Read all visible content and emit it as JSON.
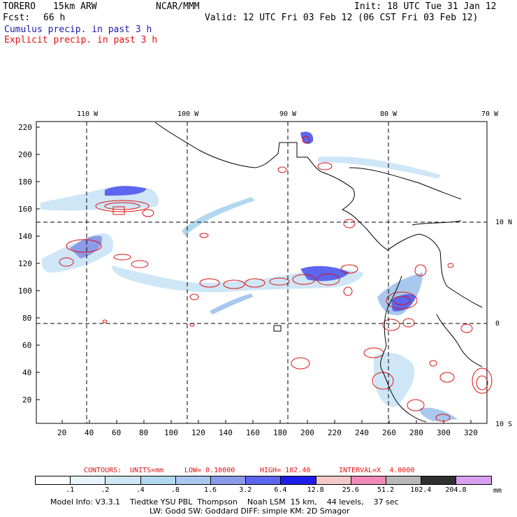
{
  "header": {
    "model": "TORERO",
    "resolution": "15km ARW",
    "center": "NCAR/MMM",
    "init": "Init: 18 UTC Tue 31 Jan 12",
    "fcst_label": "Fcst:",
    "fcst_value": "66 h",
    "valid": "Valid: 12 UTC Fri 03 Feb 12 (06 CST Fri 03 Feb 12)",
    "line_cumulus": "Cumulus precip. in past 3 h",
    "line_explicit": "Explicit precip. in past 3 h"
  },
  "map": {
    "top_lon_labels": [
      "110 W",
      "100 W",
      "90 W",
      "80 W",
      "70 W"
    ],
    "right_lat_labels": [
      "10 N",
      "0",
      "10 S"
    ],
    "y_ticks": [
      "220",
      "200",
      "180",
      "160",
      "140",
      "120",
      "100",
      "80",
      "60",
      "40",
      "20"
    ],
    "x_ticks": [
      "20",
      "40",
      "60",
      "80",
      "100",
      "120",
      "140",
      "160",
      "180",
      "200",
      "220",
      "240",
      "260",
      "280",
      "300",
      "320"
    ],
    "colors": {
      "cumulus": "#1a1aa8",
      "explicit": "#e01010"
    }
  },
  "contour_info": {
    "contours": "CONTOURS:",
    "units": "UNITS=mm",
    "low": "LOW= 0.10000",
    "high": "HIGH= 102.40",
    "interval": "INTERVAL=X  4.0000"
  },
  "legend": {
    "labels": [
      ".1",
      ".2",
      ".4",
      ".8",
      "1.6",
      "3.2",
      "6.4",
      "12.8",
      "25.6",
      "51.2",
      "102.4",
      "204.8"
    ],
    "unit": "mm",
    "colors": [
      "#ffffff",
      "#e8f3fb",
      "#cfe6f6",
      "#b2d8f0",
      "#a8c8ee",
      "#8c9ae8",
      "#5c66ee",
      "#1e1eea",
      "#f3c8c8",
      "#f08ab8",
      "#b8b8b8",
      "#303030",
      "#d7a0f0"
    ]
  },
  "footer": {
    "line1": "Model Info: V3.3.1    Tiedtke YSU PBL  Thompson    Noah LSM  15 km,    44 levels,    37 sec",
    "line2": "LW: Godd SW: Goddard DIFF: simple KM: 2D Smagor"
  }
}
